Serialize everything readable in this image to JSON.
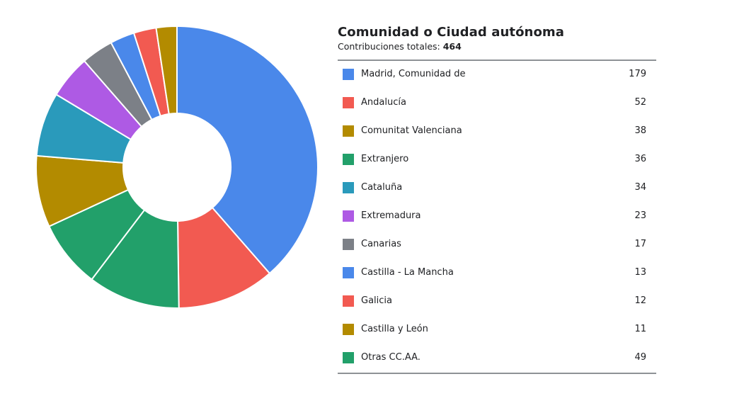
{
  "header": {
    "title": "Comunidad o Ciudad autónoma",
    "subtitle_prefix": "Contribuciones totales: ",
    "total": "464"
  },
  "chart_data": {
    "type": "pie",
    "donut": true,
    "total": 464,
    "slices": [
      {
        "label": "Madrid, Comunidad de",
        "value": 179,
        "color": "#4a88ea"
      },
      {
        "label": "Andalucía",
        "value": 52,
        "color": "#f25a51"
      },
      {
        "label": "Comunitat Valenciana",
        "value": 38,
        "color": "#b38b00"
      },
      {
        "label": "Extranjero",
        "value": 36,
        "color": "#22a06a"
      },
      {
        "label": "Cataluña",
        "value": 34,
        "color": "#2a9abb"
      },
      {
        "label": "Extremadura",
        "value": 23,
        "color": "#ae5ae4"
      },
      {
        "label": "Canarias",
        "value": 17,
        "color": "#7c8087"
      },
      {
        "label": "Castilla - La Mancha",
        "value": 13,
        "color": "#4a88ea"
      },
      {
        "label": "Galicia",
        "value": 12,
        "color": "#f25a51"
      },
      {
        "label": "Castilla y León",
        "value": 11,
        "color": "#b38b00"
      },
      {
        "label": "Otras CC.AA.",
        "value": 49,
        "color": "#22a06a"
      }
    ],
    "draw_order": [
      0,
      1,
      10,
      3,
      2,
      4,
      5,
      6,
      7,
      8,
      9
    ],
    "legend_placement": "right"
  }
}
